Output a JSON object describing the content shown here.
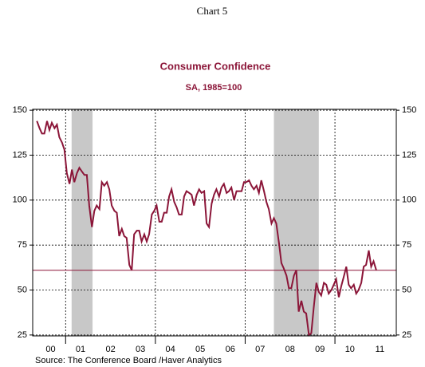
{
  "header": "Chart 5",
  "chart_data": {
    "type": "line",
    "title": "Consumer Confidence",
    "subtitle": "SA, 1985=100",
    "source": "Source:  The Conference Board /Haver Analytics",
    "x": [
      2000.04,
      2000.13,
      2000.21,
      2000.29,
      2000.38,
      2000.46,
      2000.54,
      2000.63,
      2000.71,
      2000.79,
      2000.88,
      2000.96,
      2001.04,
      2001.13,
      2001.21,
      2001.29,
      2001.38,
      2001.46,
      2001.54,
      2001.63,
      2001.71,
      2001.79,
      2001.88,
      2001.96,
      2002.04,
      2002.13,
      2002.21,
      2002.29,
      2002.38,
      2002.46,
      2002.54,
      2002.63,
      2002.71,
      2002.79,
      2002.88,
      2002.96,
      2003.04,
      2003.13,
      2003.21,
      2003.29,
      2003.38,
      2003.46,
      2003.54,
      2003.63,
      2003.71,
      2003.79,
      2003.88,
      2003.96,
      2004.04,
      2004.13,
      2004.21,
      2004.29,
      2004.38,
      2004.46,
      2004.54,
      2004.63,
      2004.71,
      2004.79,
      2004.88,
      2004.96,
      2005.04,
      2005.13,
      2005.21,
      2005.29,
      2005.38,
      2005.46,
      2005.54,
      2005.63,
      2005.71,
      2005.79,
      2005.88,
      2005.96,
      2006.04,
      2006.13,
      2006.21,
      2006.29,
      2006.38,
      2006.46,
      2006.54,
      2006.63,
      2006.71,
      2006.79,
      2006.88,
      2006.96,
      2007.04,
      2007.13,
      2007.21,
      2007.29,
      2007.38,
      2007.46,
      2007.54,
      2007.63,
      2007.71,
      2007.79,
      2007.88,
      2007.96,
      2008.04,
      2008.13,
      2008.21,
      2008.29,
      2008.38,
      2008.46,
      2008.54,
      2008.63,
      2008.71,
      2008.79,
      2008.88,
      2008.96,
      2009.04,
      2009.13,
      2009.21,
      2009.29,
      2009.38,
      2009.46,
      2009.54,
      2009.63,
      2009.71,
      2009.79,
      2009.88,
      2009.96,
      2010.04,
      2010.13,
      2010.21,
      2010.29,
      2010.38,
      2010.46,
      2010.54,
      2010.63,
      2010.71,
      2010.79,
      2010.88,
      2010.96,
      2011.04,
      2011.13,
      2011.21,
      2011.29,
      2011.38
    ],
    "series": [
      {
        "name": "Consumer Confidence",
        "color": "#8b1538",
        "values": [
          144,
          140,
          137,
          137,
          144,
          139,
          143,
          140,
          142,
          135,
          132,
          128,
          115,
          109,
          117,
          110,
          115,
          118,
          116,
          114,
          114,
          97,
          85,
          94,
          97,
          95,
          110,
          108,
          110,
          106,
          97,
          94,
          93,
          80,
          84,
          80,
          79,
          64,
          61,
          81,
          83,
          83,
          77,
          81,
          77,
          81,
          92,
          94,
          97,
          88,
          88,
          93,
          93,
          102,
          106,
          99,
          96,
          92,
          92,
          102,
          105,
          104,
          103,
          97,
          103,
          106,
          104,
          105,
          87,
          85,
          98,
          103,
          106,
          102,
          107,
          109,
          104,
          105,
          107,
          100,
          105,
          105,
          105,
          110,
          110,
          111,
          108,
          106,
          108,
          104,
          111,
          105,
          99,
          95,
          87,
          90,
          87,
          76,
          65,
          62,
          58,
          51,
          51,
          58,
          61,
          38,
          44,
          38,
          37,
          25,
          26,
          40,
          54,
          49,
          47,
          54,
          53,
          48,
          50,
          53,
          56,
          46,
          52,
          57,
          63,
          53,
          51,
          53,
          48,
          50,
          54,
          63,
          64,
          72,
          63,
          66,
          61
        ]
      }
    ],
    "hline": 61,
    "shaded": [
      [
        2001.2,
        2001.9
      ],
      [
        2007.96,
        2009.46
      ]
    ],
    "xlim": [
      1999.9,
      2012.05
    ],
    "xticks": [
      {
        "value": 2000.5,
        "label": "00"
      },
      {
        "value": 2001.5,
        "label": "01"
      },
      {
        "value": 2002.5,
        "label": "02"
      },
      {
        "value": 2003.5,
        "label": "03"
      },
      {
        "value": 2004.5,
        "label": "04"
      },
      {
        "value": 2005.5,
        "label": "05"
      },
      {
        "value": 2006.5,
        "label": "06"
      },
      {
        "value": 2007.5,
        "label": "07"
      },
      {
        "value": 2008.5,
        "label": "08"
      },
      {
        "value": 2009.5,
        "label": "09"
      },
      {
        "value": 2010.5,
        "label": "10"
      },
      {
        "value": 2011.5,
        "label": "11"
      }
    ],
    "xgrid": [
      2001,
      2004,
      2007,
      2010
    ],
    "ylim": [
      24.5,
      150.5
    ],
    "yticks": [
      25,
      50,
      75,
      100,
      125,
      150
    ],
    "grid": true
  }
}
